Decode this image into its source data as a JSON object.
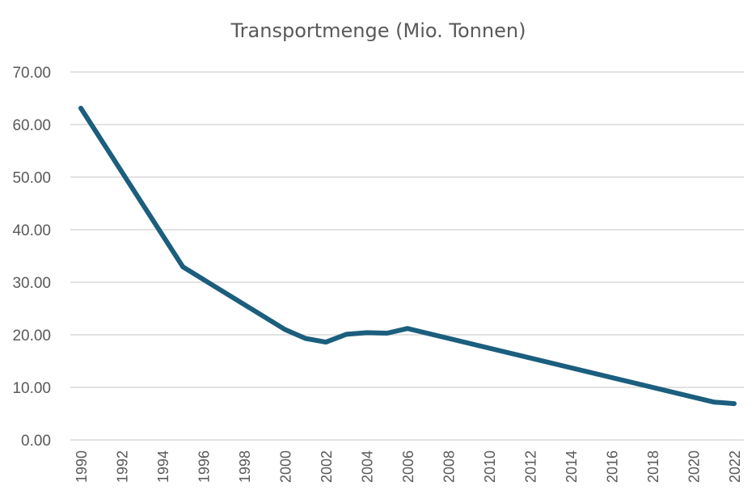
{
  "chart_data": {
    "type": "line",
    "title": "Transportmenge (Mio. Tonnen)",
    "xlabel": "",
    "ylabel": "",
    "ylim": [
      0,
      70
    ],
    "yticks": [
      0,
      10,
      20,
      30,
      40,
      50,
      60,
      70
    ],
    "ytick_labels": [
      "0.00",
      "10.00",
      "20.00",
      "30.00",
      "40.00",
      "50.00",
      "60.00",
      "70.00"
    ],
    "xlim": [
      1990,
      2022
    ],
    "xtick_labels": [
      "1990",
      "1992",
      "1994",
      "1996",
      "1998",
      "2000",
      "2002",
      "2004",
      "2006",
      "2008",
      "2010",
      "2012",
      "2014",
      "2016",
      "2018",
      "2020",
      "2022"
    ],
    "grid": true,
    "legend": "none",
    "series": [
      {
        "name": "Transportmenge (Mio. Tonnen)",
        "color": "#1b5e7e",
        "x": [
          1990,
          1995,
          2000,
          2001,
          2002,
          2003,
          2004,
          2005,
          2006,
          2021,
          2022
        ],
        "values": [
          63.1,
          32.9,
          21.0,
          19.3,
          18.6,
          20.1,
          20.4,
          20.3,
          21.2,
          7.2,
          6.9
        ]
      }
    ]
  }
}
